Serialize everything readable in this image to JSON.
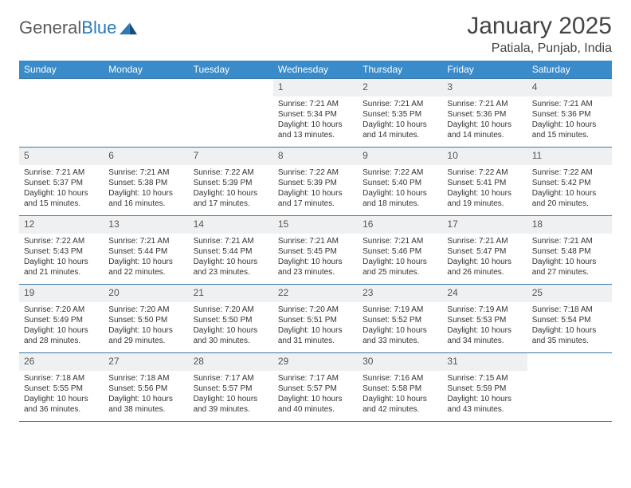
{
  "logo": {
    "text_gray": "General",
    "text_blue": "Blue"
  },
  "title": "January 2025",
  "location": "Patiala, Punjab, India",
  "colors": {
    "header_bg": "#3a8bc9",
    "header_text": "#ffffff",
    "row_border": "#3a78a8",
    "daynum_bg": "#eef0f2",
    "logo_gray": "#5a5a5a",
    "logo_blue": "#2a7ab9",
    "body_text": "#333333",
    "page_bg": "#ffffff"
  },
  "typography": {
    "title_fontsize": 30,
    "location_fontsize": 16,
    "day_header_fontsize": 12,
    "daynum_fontsize": 12,
    "body_fontsize": 10
  },
  "day_names": [
    "Sunday",
    "Monday",
    "Tuesday",
    "Wednesday",
    "Thursday",
    "Friday",
    "Saturday"
  ],
  "weeks": [
    [
      {
        "n": "",
        "lines": []
      },
      {
        "n": "",
        "lines": []
      },
      {
        "n": "",
        "lines": []
      },
      {
        "n": "1",
        "lines": [
          "Sunrise: 7:21 AM",
          "Sunset: 5:34 PM",
          "Daylight: 10 hours and 13 minutes."
        ]
      },
      {
        "n": "2",
        "lines": [
          "Sunrise: 7:21 AM",
          "Sunset: 5:35 PM",
          "Daylight: 10 hours and 14 minutes."
        ]
      },
      {
        "n": "3",
        "lines": [
          "Sunrise: 7:21 AM",
          "Sunset: 5:36 PM",
          "Daylight: 10 hours and 14 minutes."
        ]
      },
      {
        "n": "4",
        "lines": [
          "Sunrise: 7:21 AM",
          "Sunset: 5:36 PM",
          "Daylight: 10 hours and 15 minutes."
        ]
      }
    ],
    [
      {
        "n": "5",
        "lines": [
          "Sunrise: 7:21 AM",
          "Sunset: 5:37 PM",
          "Daylight: 10 hours and 15 minutes."
        ]
      },
      {
        "n": "6",
        "lines": [
          "Sunrise: 7:21 AM",
          "Sunset: 5:38 PM",
          "Daylight: 10 hours and 16 minutes."
        ]
      },
      {
        "n": "7",
        "lines": [
          "Sunrise: 7:22 AM",
          "Sunset: 5:39 PM",
          "Daylight: 10 hours and 17 minutes."
        ]
      },
      {
        "n": "8",
        "lines": [
          "Sunrise: 7:22 AM",
          "Sunset: 5:39 PM",
          "Daylight: 10 hours and 17 minutes."
        ]
      },
      {
        "n": "9",
        "lines": [
          "Sunrise: 7:22 AM",
          "Sunset: 5:40 PM",
          "Daylight: 10 hours and 18 minutes."
        ]
      },
      {
        "n": "10",
        "lines": [
          "Sunrise: 7:22 AM",
          "Sunset: 5:41 PM",
          "Daylight: 10 hours and 19 minutes."
        ]
      },
      {
        "n": "11",
        "lines": [
          "Sunrise: 7:22 AM",
          "Sunset: 5:42 PM",
          "Daylight: 10 hours and 20 minutes."
        ]
      }
    ],
    [
      {
        "n": "12",
        "lines": [
          "Sunrise: 7:22 AM",
          "Sunset: 5:43 PM",
          "Daylight: 10 hours and 21 minutes."
        ]
      },
      {
        "n": "13",
        "lines": [
          "Sunrise: 7:21 AM",
          "Sunset: 5:44 PM",
          "Daylight: 10 hours and 22 minutes."
        ]
      },
      {
        "n": "14",
        "lines": [
          "Sunrise: 7:21 AM",
          "Sunset: 5:44 PM",
          "Daylight: 10 hours and 23 minutes."
        ]
      },
      {
        "n": "15",
        "lines": [
          "Sunrise: 7:21 AM",
          "Sunset: 5:45 PM",
          "Daylight: 10 hours and 23 minutes."
        ]
      },
      {
        "n": "16",
        "lines": [
          "Sunrise: 7:21 AM",
          "Sunset: 5:46 PM",
          "Daylight: 10 hours and 25 minutes."
        ]
      },
      {
        "n": "17",
        "lines": [
          "Sunrise: 7:21 AM",
          "Sunset: 5:47 PM",
          "Daylight: 10 hours and 26 minutes."
        ]
      },
      {
        "n": "18",
        "lines": [
          "Sunrise: 7:21 AM",
          "Sunset: 5:48 PM",
          "Daylight: 10 hours and 27 minutes."
        ]
      }
    ],
    [
      {
        "n": "19",
        "lines": [
          "Sunrise: 7:20 AM",
          "Sunset: 5:49 PM",
          "Daylight: 10 hours and 28 minutes."
        ]
      },
      {
        "n": "20",
        "lines": [
          "Sunrise: 7:20 AM",
          "Sunset: 5:50 PM",
          "Daylight: 10 hours and 29 minutes."
        ]
      },
      {
        "n": "21",
        "lines": [
          "Sunrise: 7:20 AM",
          "Sunset: 5:50 PM",
          "Daylight: 10 hours and 30 minutes."
        ]
      },
      {
        "n": "22",
        "lines": [
          "Sunrise: 7:20 AM",
          "Sunset: 5:51 PM",
          "Daylight: 10 hours and 31 minutes."
        ]
      },
      {
        "n": "23",
        "lines": [
          "Sunrise: 7:19 AM",
          "Sunset: 5:52 PM",
          "Daylight: 10 hours and 33 minutes."
        ]
      },
      {
        "n": "24",
        "lines": [
          "Sunrise: 7:19 AM",
          "Sunset: 5:53 PM",
          "Daylight: 10 hours and 34 minutes."
        ]
      },
      {
        "n": "25",
        "lines": [
          "Sunrise: 7:18 AM",
          "Sunset: 5:54 PM",
          "Daylight: 10 hours and 35 minutes."
        ]
      }
    ],
    [
      {
        "n": "26",
        "lines": [
          "Sunrise: 7:18 AM",
          "Sunset: 5:55 PM",
          "Daylight: 10 hours and 36 minutes."
        ]
      },
      {
        "n": "27",
        "lines": [
          "Sunrise: 7:18 AM",
          "Sunset: 5:56 PM",
          "Daylight: 10 hours and 38 minutes."
        ]
      },
      {
        "n": "28",
        "lines": [
          "Sunrise: 7:17 AM",
          "Sunset: 5:57 PM",
          "Daylight: 10 hours and 39 minutes."
        ]
      },
      {
        "n": "29",
        "lines": [
          "Sunrise: 7:17 AM",
          "Sunset: 5:57 PM",
          "Daylight: 10 hours and 40 minutes."
        ]
      },
      {
        "n": "30",
        "lines": [
          "Sunrise: 7:16 AM",
          "Sunset: 5:58 PM",
          "Daylight: 10 hours and 42 minutes."
        ]
      },
      {
        "n": "31",
        "lines": [
          "Sunrise: 7:15 AM",
          "Sunset: 5:59 PM",
          "Daylight: 10 hours and 43 minutes."
        ]
      },
      {
        "n": "",
        "lines": []
      }
    ]
  ]
}
